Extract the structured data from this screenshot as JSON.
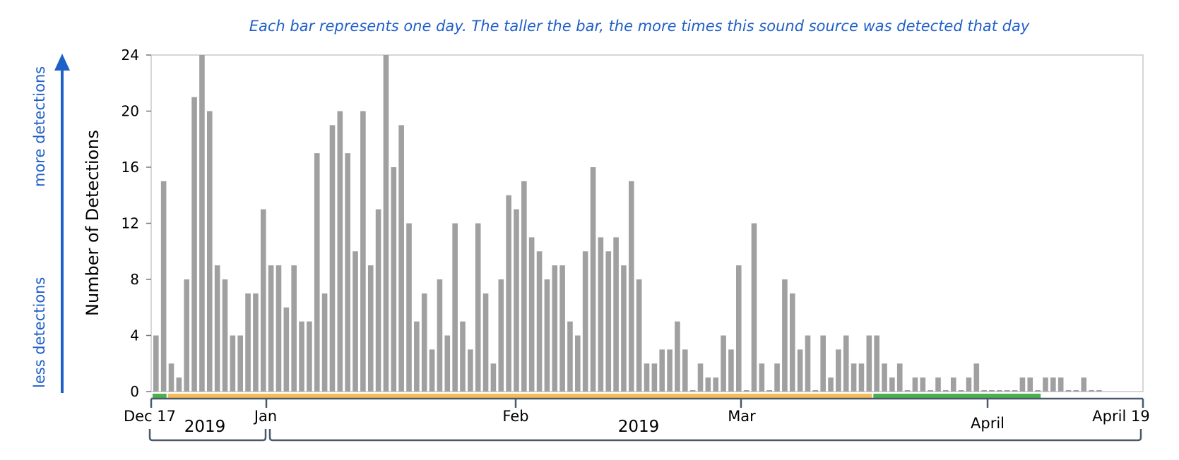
{
  "caption": "Each bar represents one day. The taller the bar, the more times this sound source was detected that day",
  "side_labels": {
    "top": "more detections",
    "bottom": "less detections"
  },
  "colors": {
    "bar": "#a0a0a0",
    "caption": "#1f5fc8",
    "arrow": "#1f5fc8",
    "green": "#4caf50",
    "orange": "#f5bc5c",
    "axis": "#4a5a6a",
    "frame": "#bfbfbf"
  },
  "chart_data": {
    "type": "bar",
    "title": "",
    "xlabel": "",
    "ylabel": "Number of Detections",
    "ylim": [
      0,
      24
    ],
    "yticks": [
      0,
      4,
      8,
      12,
      16,
      20,
      24
    ],
    "grid": false,
    "start_date": "2018-12-17",
    "end_date": "2019-04-19",
    "values": [
      4,
      15,
      2,
      1,
      8,
      21,
      24,
      20,
      9,
      8,
      4,
      4,
      7,
      7,
      13,
      9,
      9,
      6,
      9,
      5,
      5,
      17,
      7,
      19,
      20,
      17,
      10,
      20,
      9,
      13,
      24,
      16,
      19,
      12,
      5,
      7,
      3,
      8,
      4,
      12,
      5,
      3,
      12,
      7,
      2,
      8,
      14,
      13,
      15,
      11,
      10,
      8,
      9,
      9,
      5,
      4,
      10,
      16,
      11,
      10,
      11,
      9,
      15,
      8,
      2,
      2,
      3,
      3,
      5,
      3,
      0,
      2,
      1,
      1,
      4,
      3,
      9,
      0,
      12,
      2,
      0,
      2,
      8,
      7,
      3,
      4,
      0,
      4,
      1,
      3,
      4,
      2,
      2,
      4,
      4,
      2,
      1,
      2,
      0,
      1,
      1,
      0,
      1,
      0,
      1,
      0,
      1,
      2,
      0,
      0,
      0,
      0,
      0,
      1,
      1,
      0,
      1,
      1,
      1,
      0,
      0,
      1,
      0,
      0
    ],
    "date_labels": [
      "Dec 17",
      "Jan",
      "Feb",
      "Mar",
      "April",
      "April 19"
    ],
    "year_labels": [
      "2019",
      "2019"
    ],
    "status_segments": [
      {
        "color": "green",
        "from": 0,
        "to": 2
      },
      {
        "color": "orange",
        "from": 2,
        "to": 94
      },
      {
        "color": "green",
        "from": 94,
        "to": 116
      }
    ]
  }
}
